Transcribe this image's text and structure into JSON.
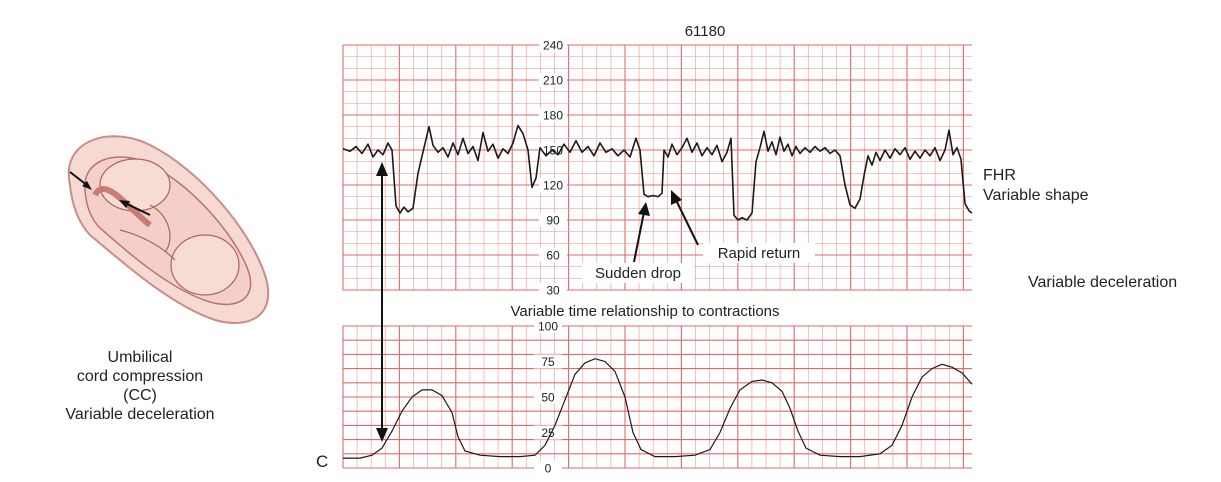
{
  "chart_id": "61180",
  "fhr_panel": {
    "y_ticks": [
      "240",
      "210",
      "180",
      "150",
      "120",
      "90",
      "60",
      "30"
    ],
    "label_line1": "FHR",
    "label_line2": "Variable shape",
    "annotations": {
      "sudden_drop": "Sudden drop",
      "rapid_return": "Rapid return"
    }
  },
  "relationship_text": "Variable time relationship to contractions",
  "uc_panel": {
    "y_ticks": [
      "100",
      "75",
      "50",
      "25",
      "0"
    ],
    "marker": "C"
  },
  "side_label": "Variable deceleration",
  "illustration": {
    "caption": [
      "Umbilical",
      "cord compression",
      "(CC)",
      "Variable deceleration"
    ]
  },
  "colors": {
    "grid": "#e06a6a",
    "grid_minor": "#f0a3a3",
    "trace": "#1a1a1a",
    "fetus": "#f4cfc8",
    "uterus": "#e9b5ad",
    "cord": "#c97b74"
  }
}
